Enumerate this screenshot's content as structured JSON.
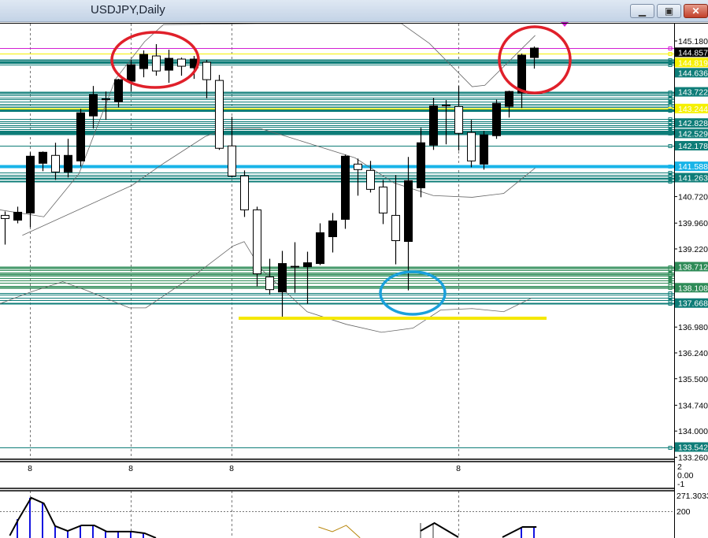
{
  "window": {
    "title": "USDJPY,Daily",
    "buttons": {
      "minimize_icon": "minimize-icon",
      "restore_icon": "restore-icon",
      "close_icon": "close-icon",
      "close_label": "✕",
      "restore_label": "▣",
      "minimize_label": "▁"
    }
  },
  "colors": {
    "bull": "#000000",
    "bear": "#ffffff",
    "teal": "#0e7d78",
    "green": "#2e8b57",
    "cyan": "#18b4e8",
    "yellow": "#f5f000",
    "magenta": "#d21fd2",
    "annotation_red": "#e0202a",
    "annotation_blue": "#1aa0dc",
    "annotation_yellow": "#f5e800"
  },
  "chart_data": {
    "type": "candlestick",
    "symbol": "USDJPY",
    "timeframe": "Daily",
    "ylim": [
      133.26,
      145.18
    ],
    "candle_colors": "bullish black, bearish white",
    "candles": [
      [
        140.181,
        140.294,
        139.344,
        140.09
      ],
      [
        140.045,
        140.43,
        139.954,
        140.271
      ],
      [
        140.249,
        141.99,
        139.841,
        141.877
      ],
      [
        141.674,
        142.013,
        141.447,
        141.99
      ],
      [
        141.9,
        142.262,
        141.199,
        141.425
      ],
      [
        141.425,
        142.375,
        141.266,
        141.9
      ],
      [
        141.742,
        143.234,
        141.583,
        143.121
      ],
      [
        143.031,
        143.89,
        142.669,
        143.642
      ],
      [
        143.506,
        143.732,
        142.918,
        143.506
      ],
      [
        143.438,
        144.094,
        143.28,
        144.071
      ],
      [
        144.026,
        144.637,
        143.732,
        144.501
      ],
      [
        144.388,
        144.908,
        144.139,
        144.795
      ],
      [
        144.75,
        145.089,
        144.184,
        144.32
      ],
      [
        144.343,
        144.931,
        143.981,
        144.682
      ],
      [
        144.66,
        144.705,
        144.184,
        144.456
      ],
      [
        144.411,
        144.75,
        144.094,
        144.66
      ],
      [
        144.569,
        144.637,
        143.529,
        144.071
      ],
      [
        144.049,
        144.207,
        142.058,
        142.104
      ],
      [
        142.172,
        143.008,
        141.266,
        141.312
      ],
      [
        141.312,
        141.47,
        140.136,
        140.339
      ],
      [
        140.339,
        140.43,
        138.145,
        138.507
      ],
      [
        138.416,
        138.937,
        137.919,
        138.054
      ],
      [
        137.987,
        139.163,
        137.263,
        138.801
      ],
      [
        138.71,
        139.412,
        137.964,
        138.71
      ],
      [
        138.71,
        139.14,
        137.647,
        138.823
      ],
      [
        138.801,
        139.954,
        138.756,
        139.683
      ],
      [
        139.57,
        140.249,
        139.118,
        140.022
      ],
      [
        140.068,
        141.923,
        139.796,
        141.877
      ],
      [
        141.651,
        141.809,
        140.746,
        141.493
      ],
      [
        141.47,
        141.742,
        140.837,
        140.927
      ],
      [
        140.995,
        141.199,
        139.932,
        140.249
      ],
      [
        140.181,
        141.334,
        138.778,
        139.457
      ],
      [
        139.434,
        141.855,
        138.032,
        141.176
      ],
      [
        140.972,
        142.692,
        140.701,
        142.262
      ],
      [
        142.194,
        143.551,
        142.058,
        143.325
      ],
      [
        143.325,
        143.483,
        142.217,
        143.325
      ],
      [
        143.302,
        143.89,
        142.036,
        142.533
      ],
      [
        142.556,
        142.918,
        141.561,
        141.742
      ],
      [
        141.651,
        142.601,
        141.493,
        142.488
      ],
      [
        142.465,
        143.506,
        142.375,
        143.393
      ],
      [
        143.302,
        143.755,
        142.985,
        143.732
      ],
      [
        143.687,
        144.818,
        143.257,
        144.773
      ],
      [
        144.705,
        145.021,
        144.388,
        144.976
      ]
    ],
    "candle_fields": [
      "open",
      "high",
      "low",
      "close"
    ],
    "indicator_lines": [
      {
        "role": "upper-band",
        "points": [
          [
            -0.4,
            140.34
          ],
          [
            3.1,
            140.14
          ],
          [
            5.9,
            141.38
          ],
          [
            8.8,
            144.09
          ],
          [
            11.1,
            145.16
          ],
          [
            12.6,
            145.65
          ],
          [
            20,
            146.6
          ],
          [
            31.5,
            145.68
          ],
          [
            33.7,
            145.11
          ],
          [
            37.1,
            143.87
          ],
          [
            38.1,
            143.91
          ],
          [
            42.1,
            145.34
          ]
        ]
      },
      {
        "role": "middle-band",
        "points": [
          [
            1.4,
            139.61
          ],
          [
            10.1,
            141.04
          ],
          [
            12.6,
            141.67
          ],
          [
            15.9,
            142.44
          ],
          [
            17.6,
            142.67
          ],
          [
            20.3,
            142.67
          ],
          [
            22.4,
            142.44
          ],
          [
            27.8,
            141.83
          ],
          [
            30.9,
            141.11
          ],
          [
            34,
            140.75
          ],
          [
            37.1,
            140.7
          ],
          [
            39.6,
            140.81
          ],
          [
            42.1,
            141.54
          ]
        ]
      },
      {
        "role": "lower-band",
        "points": [
          [
            -0.4,
            137.65
          ],
          [
            2.1,
            137.99
          ],
          [
            4.6,
            138.28
          ],
          [
            6.5,
            138.03
          ],
          [
            9.9,
            137.53
          ],
          [
            11.2,
            137.53
          ],
          [
            15.3,
            138.53
          ],
          [
            18.1,
            139.3
          ],
          [
            19,
            139.43
          ],
          [
            20.3,
            138.66
          ],
          [
            24,
            137.42
          ],
          [
            27.1,
            137.06
          ],
          [
            29.9,
            136.83
          ],
          [
            32.4,
            136.95
          ],
          [
            34.6,
            137.47
          ],
          [
            37.1,
            137.51
          ],
          [
            39.6,
            137.42
          ],
          [
            41.8,
            137.81
          ]
        ]
      }
    ],
    "levels": [
      {
        "price": 144.976,
        "color": "magenta",
        "w": 1
      },
      {
        "price": 144.819,
        "color": "yellow",
        "w": 1
      },
      {
        "price": 144.636,
        "color": "teal",
        "w": 2
      },
      {
        "price": 144.56,
        "color": "teal",
        "w": 3
      },
      {
        "price": 144.5,
        "color": "teal",
        "w": 1
      },
      {
        "price": 143.722,
        "color": "teal",
        "w": 2
      },
      {
        "price": 143.67,
        "color": "teal",
        "w": 1
      },
      {
        "price": 143.62,
        "color": "teal",
        "w": 1
      },
      {
        "price": 143.56,
        "color": "teal",
        "w": 1
      },
      {
        "price": 143.5,
        "color": "teal",
        "w": 1
      },
      {
        "price": 143.44,
        "color": "teal",
        "w": 1
      },
      {
        "price": 143.38,
        "color": "teal",
        "w": 1
      },
      {
        "price": 143.33,
        "color": "teal",
        "w": 1
      },
      {
        "price": 143.277,
        "color": "teal",
        "w": 1
      },
      {
        "price": 143.244,
        "color": "yellow",
        "w": 2
      },
      {
        "price": 143.19,
        "color": "teal",
        "w": 3
      },
      {
        "price": 142.94,
        "color": "teal",
        "w": 1
      },
      {
        "price": 142.88,
        "color": "teal",
        "w": 1
      },
      {
        "price": 142.828,
        "color": "teal",
        "w": 1
      },
      {
        "price": 142.77,
        "color": "teal",
        "w": 1
      },
      {
        "price": 142.71,
        "color": "teal",
        "w": 1
      },
      {
        "price": 142.65,
        "color": "teal",
        "w": 1
      },
      {
        "price": 142.59,
        "color": "teal",
        "w": 3
      },
      {
        "price": 142.529,
        "color": "teal",
        "w": 4
      },
      {
        "price": 142.178,
        "color": "teal",
        "w": 1
      },
      {
        "price": 141.588,
        "color": "cyan",
        "w": 4
      },
      {
        "price": 141.4,
        "color": "teal",
        "w": 1
      },
      {
        "price": 141.351,
        "color": "teal",
        "w": 1
      },
      {
        "price": 141.3,
        "color": "teal",
        "w": 1
      },
      {
        "price": 141.263,
        "color": "teal",
        "w": 1
      },
      {
        "price": 141.22,
        "color": "teal",
        "w": 1
      },
      {
        "price": 141.17,
        "color": "teal",
        "w": 2
      },
      {
        "price": 138.712,
        "color": "green",
        "w": 2
      },
      {
        "price": 138.66,
        "color": "green",
        "w": 1
      },
      {
        "price": 138.6,
        "color": "green",
        "w": 1
      },
      {
        "price": 138.55,
        "color": "green",
        "w": 1
      },
      {
        "price": 138.5,
        "color": "green",
        "w": 2
      },
      {
        "price": 138.45,
        "color": "green",
        "w": 1
      },
      {
        "price": 138.38,
        "color": "green",
        "w": 1
      },
      {
        "price": 138.32,
        "color": "green",
        "w": 1
      },
      {
        "price": 138.25,
        "color": "green",
        "w": 1
      },
      {
        "price": 138.17,
        "color": "green",
        "w": 1
      },
      {
        "price": 138.108,
        "color": "green",
        "w": 2
      },
      {
        "price": 137.963,
        "color": "teal",
        "w": 1
      },
      {
        "price": 137.9,
        "color": "teal",
        "w": 1
      },
      {
        "price": 137.82,
        "color": "teal",
        "w": 1
      },
      {
        "price": 137.75,
        "color": "teal",
        "w": 1
      },
      {
        "price": 137.668,
        "color": "teal",
        "w": 2
      },
      {
        "price": 133.542,
        "color": "teal",
        "w": 1
      }
    ],
    "price_labels": [
      {
        "text": "144.857",
        "price": 144.857,
        "bg": "#000000"
      },
      {
        "text": "144.819",
        "price": 144.8,
        "bg": "#f5f000"
      },
      {
        "text": "144.636",
        "price": 144.636,
        "bg": "#0e7d78"
      },
      {
        "text": "143.722",
        "price": 143.722,
        "bg": "#0e7d78"
      },
      {
        "text": "143.244",
        "price": 143.244,
        "bg": "#f5f000"
      },
      {
        "text": "142.828",
        "price": 142.828,
        "bg": "#0e7d78"
      },
      {
        "text": "142.529",
        "price": 142.529,
        "bg": "#0e7d78"
      },
      {
        "text": "142.178",
        "price": 142.178,
        "bg": "#0e7d78"
      },
      {
        "text": "141.588",
        "price": 141.588,
        "bg": "#18b4e8"
      },
      {
        "text": "141.263",
        "price": 141.263,
        "bg": "#0e7d78"
      },
      {
        "text": "138.712",
        "price": 138.712,
        "bg": "#2e8b57"
      },
      {
        "text": "138.108",
        "price": 138.108,
        "bg": "#2e8b57"
      },
      {
        "text": "137.668",
        "price": 137.668,
        "bg": "#0e7d78"
      },
      {
        "text": "133.542",
        "price": 133.542,
        "bg": "#0e7d78"
      }
    ],
    "y_ticks": [
      "145.180",
      "140.720",
      "139.960",
      "139.220",
      "136.980",
      "136.240",
      "135.500",
      "134.740",
      "134.000",
      "133.260"
    ],
    "x_tick_labels": [
      {
        "index": 2,
        "text": "8"
      },
      {
        "index": 10,
        "text": "8"
      },
      {
        "index": 18,
        "text": "8"
      },
      {
        "index": 36,
        "text": "8"
      }
    ],
    "subpane1": {
      "labels": [
        "2",
        "0.00",
        "-1"
      ]
    },
    "subpane2": {
      "labels": [
        "271.3033",
        "200"
      ],
      "level": 200,
      "max": 271.3033,
      "black_line": [
        [
          [
            0.4,
            95
          ],
          [
            1.1,
            166
          ],
          [
            2.1,
            258
          ],
          [
            3.1,
            234
          ],
          [
            4.0,
            136
          ],
          [
            5.0,
            115
          ],
          [
            6.1,
            139
          ],
          [
            7.1,
            139
          ],
          [
            8.1,
            112
          ],
          [
            10.1,
            112
          ],
          [
            11.1,
            105
          ],
          [
            12.0,
            85
          ]
        ],
        [
          [
            33,
            115
          ],
          [
            34.1,
            149
          ],
          [
            36,
            88
          ]
        ],
        [
          [
            39.5,
            88
          ],
          [
            41.1,
            132
          ],
          [
            42.2,
            132
          ]
        ]
      ],
      "gold_line": [
        [
          [
            24.9,
            132
          ],
          [
            26,
            112
          ],
          [
            27.1,
            139
          ],
          [
            28.2,
            85
          ]
        ]
      ],
      "blue_bars": [
        [
          1,
          166
        ],
        [
          2,
          258
        ],
        [
          3,
          234
        ],
        [
          4,
          136
        ],
        [
          5,
          115
        ],
        [
          6,
          139
        ],
        [
          7,
          139
        ],
        [
          8,
          112
        ],
        [
          9,
          112
        ],
        [
          10,
          112
        ],
        [
          11,
          105
        ],
        [
          41,
          132
        ],
        [
          42,
          132
        ]
      ],
      "gray_bars": [
        [
          33,
          149
        ],
        [
          34,
          149
        ]
      ]
    }
  }
}
